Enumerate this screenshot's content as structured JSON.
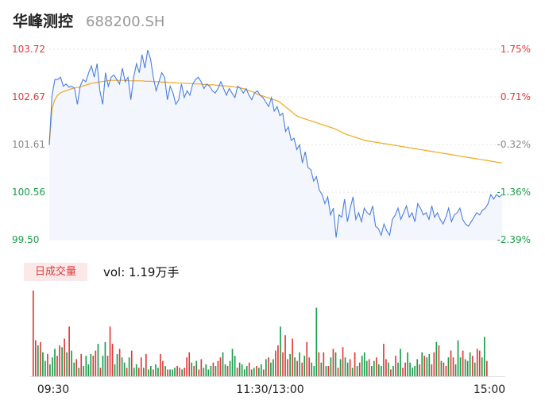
{
  "header": {
    "name": "华峰测控",
    "code": "688200.SH"
  },
  "volume": {
    "badge": "日成交量",
    "label": "vol: 1.19万手"
  },
  "colors": {
    "up": "#e03a3a",
    "down": "#1a9c4a",
    "price": "#4a7fe0",
    "avg": "#f0a820",
    "grid": "#e6e6e6"
  },
  "chart_data": [
    {
      "type": "line",
      "y_ticks_left": [
        "103.72",
        "102.67",
        "101.61",
        "100.56",
        "99.50"
      ],
      "y_ticks_right": [
        "1.75%",
        "0.71%",
        "-0.32%",
        "-1.36%",
        "-2.39%"
      ],
      "ylim": [
        99.5,
        103.72
      ],
      "x_ticks": [
        "09:30",
        "11:30/13:00",
        "15:00"
      ],
      "series": [
        {
          "key": "price",
          "values": [
            101.6,
            102.7,
            103.05,
            103.05,
            103.1,
            102.9,
            102.95,
            102.88,
            102.9,
            102.85,
            102.5,
            102.9,
            103.05,
            103.0,
            103.2,
            103.35,
            103.1,
            103.4,
            102.8,
            102.5,
            103.2,
            102.9,
            103.1,
            103.15,
            103.05,
            102.95,
            103.3,
            103.0,
            103.1,
            102.6,
            103.1,
            103.4,
            103.2,
            103.6,
            103.3,
            103.7,
            103.5,
            103.1,
            102.8,
            103.0,
            103.2,
            103.1,
            102.6,
            102.9,
            102.75,
            102.5,
            102.6,
            102.95,
            102.65,
            102.8,
            102.7,
            102.95,
            103.05,
            103.1,
            103.0,
            102.85,
            102.95,
            102.9,
            102.8,
            102.75,
            102.85,
            103.0,
            102.85,
            102.7,
            102.85,
            102.75,
            102.65,
            102.9,
            102.85,
            102.75,
            102.85,
            102.7,
            102.6,
            102.75,
            102.8,
            102.7,
            102.65,
            102.55,
            102.45,
            102.65,
            102.35,
            102.45,
            102.25,
            102.3,
            101.9,
            102.0,
            101.7,
            101.75,
            101.5,
            101.6,
            101.2,
            101.45,
            101.1,
            101.05,
            100.8,
            100.9,
            100.6,
            100.5,
            100.3,
            100.45,
            100.05,
            100.2,
            99.55,
            100.05,
            100.0,
            100.4,
            99.9,
            100.2,
            100.45,
            99.95,
            100.1,
            99.9,
            100.2,
            100.1,
            100.05,
            100.25,
            99.8,
            99.75,
            99.6,
            99.85,
            99.7,
            99.6,
            99.95,
            100.05,
            100.2,
            99.95,
            100.1,
            100.25,
            100.0,
            100.1,
            99.9,
            100.3,
            100.2,
            100.05,
            100.1,
            99.95,
            100.25,
            100.0,
            100.1,
            99.95,
            99.85,
            100.0,
            100.2,
            99.9,
            100.05,
            100.1,
            100.2,
            99.95,
            99.85,
            99.8,
            99.9,
            100.0,
            100.1,
            100.05,
            100.15,
            100.2,
            100.3,
            100.5,
            100.4,
            100.5,
            100.45,
            100.5
          ],
          "name": ""
        },
        {
          "key": "avg",
          "values": [
            101.6,
            102.4,
            102.6,
            102.7,
            102.75,
            102.78,
            102.8,
            102.82,
            102.84,
            102.86,
            102.87,
            102.88,
            102.9,
            102.92,
            102.94,
            102.96,
            102.97,
            102.98,
            102.99,
            103.0,
            103.01,
            103.02,
            103.03,
            103.03,
            103.03,
            103.03,
            103.03,
            103.03,
            103.03,
            103.02,
            103.02,
            103.02,
            103.02,
            103.02,
            103.02,
            103.01,
            103.01,
            103.01,
            103.0,
            103.0,
            103.0,
            102.99,
            102.99,
            102.99,
            102.98,
            102.98,
            102.98,
            102.97,
            102.97,
            102.97,
            102.96,
            102.96,
            102.96,
            102.95,
            102.95,
            102.95,
            102.94,
            102.94,
            102.93,
            102.93,
            102.93,
            102.92,
            102.92,
            102.91,
            102.91,
            102.9,
            102.9,
            102.89,
            102.88,
            102.87,
            102.86,
            102.84,
            102.82,
            102.8,
            102.78,
            102.75,
            102.72,
            102.7,
            102.68,
            102.66,
            102.64,
            102.62,
            102.6,
            102.58,
            102.55,
            102.5,
            102.45,
            102.4,
            102.35,
            102.3,
            102.25,
            102.22,
            102.2,
            102.18,
            102.16,
            102.14,
            102.12,
            102.1,
            102.08,
            102.06,
            102.04,
            102.02,
            102.0,
            101.98,
            101.96,
            101.93,
            101.9,
            101.87,
            101.84,
            101.82,
            101.8,
            101.78,
            101.76,
            101.74,
            101.72,
            101.7,
            101.69,
            101.68,
            101.67,
            101.66,
            101.65,
            101.64,
            101.63,
            101.62,
            101.61,
            101.6,
            101.59,
            101.58,
            101.57,
            101.56,
            101.55,
            101.54,
            101.53,
            101.52,
            101.51,
            101.5,
            101.49,
            101.48,
            101.47,
            101.46,
            101.45,
            101.44,
            101.43,
            101.42,
            101.41,
            101.4,
            101.39,
            101.38,
            101.37,
            101.36,
            101.35,
            101.34,
            101.33,
            101.32,
            101.31,
            101.3,
            101.29,
            101.28,
            101.27,
            101.26,
            101.25,
            101.24,
            101.23,
            101.22,
            101.21,
            101.2
          ],
          "name": ""
        }
      ]
    },
    {
      "type": "bar",
      "name": "volume",
      "values": [
        [
          100,
          1
        ],
        [
          42,
          1
        ],
        [
          36,
          0
        ],
        [
          40,
          1
        ],
        [
          28,
          0
        ],
        [
          18,
          0
        ],
        [
          26,
          1
        ],
        [
          14,
          0
        ],
        [
          22,
          0
        ],
        [
          32,
          0
        ],
        [
          24,
          1
        ],
        [
          36,
          1
        ],
        [
          34,
          0
        ],
        [
          44,
          1
        ],
        [
          28,
          0
        ],
        [
          58,
          1
        ],
        [
          30,
          0
        ],
        [
          16,
          0
        ],
        [
          20,
          1
        ],
        [
          10,
          0
        ],
        [
          26,
          1
        ],
        [
          12,
          0
        ],
        [
          24,
          0
        ],
        [
          14,
          0
        ],
        [
          26,
          0
        ],
        [
          24,
          1
        ],
        [
          30,
          1
        ],
        [
          38,
          0
        ],
        [
          10,
          1
        ],
        [
          24,
          0
        ],
        [
          40,
          0
        ],
        [
          24,
          1
        ],
        [
          58,
          1
        ],
        [
          38,
          1
        ],
        [
          14,
          0
        ],
        [
          26,
          0
        ],
        [
          32,
          1
        ],
        [
          22,
          0
        ],
        [
          16,
          0
        ],
        [
          10,
          1
        ],
        [
          22,
          0
        ],
        [
          30,
          1
        ],
        [
          10,
          0
        ],
        [
          14,
          0
        ],
        [
          10,
          1
        ],
        [
          22,
          1
        ],
        [
          10,
          0
        ],
        [
          26,
          1
        ],
        [
          8,
          0
        ],
        [
          12,
          0
        ],
        [
          8,
          1
        ],
        [
          14,
          0
        ],
        [
          10,
          0
        ],
        [
          26,
          1
        ],
        [
          18,
          1
        ],
        [
          12,
          0
        ],
        [
          8,
          1
        ],
        [
          8,
          0
        ],
        [
          8,
          0
        ],
        [
          10,
          0
        ],
        [
          12,
          1
        ],
        [
          10,
          1
        ],
        [
          8,
          0
        ],
        [
          10,
          1
        ],
        [
          22,
          1
        ],
        [
          28,
          1
        ],
        [
          16,
          0
        ],
        [
          12,
          1
        ],
        [
          18,
          0
        ],
        [
          8,
          1
        ],
        [
          20,
          1
        ],
        [
          10,
          0
        ],
        [
          14,
          0
        ],
        [
          8,
          0
        ],
        [
          12,
          0
        ],
        [
          16,
          1
        ],
        [
          12,
          0
        ],
        [
          18,
          1
        ],
        [
          22,
          1
        ],
        [
          28,
          0
        ],
        [
          14,
          0
        ],
        [
          12,
          1
        ],
        [
          18,
          0
        ],
        [
          32,
          0
        ],
        [
          24,
          0
        ],
        [
          10,
          1
        ],
        [
          16,
          0
        ],
        [
          14,
          0
        ],
        [
          8,
          0
        ],
        [
          12,
          0
        ],
        [
          16,
          1
        ],
        [
          8,
          0
        ],
        [
          10,
          0
        ],
        [
          12,
          1
        ],
        [
          10,
          0
        ],
        [
          14,
          0
        ],
        [
          8,
          1
        ],
        [
          20,
          0
        ],
        [
          22,
          1
        ],
        [
          16,
          0
        ],
        [
          20,
          0
        ],
        [
          30,
          1
        ],
        [
          36,
          1
        ],
        [
          58,
          0
        ],
        [
          28,
          1
        ],
        [
          48,
          1
        ],
        [
          20,
          1
        ],
        [
          26,
          0
        ],
        [
          44,
          1
        ],
        [
          22,
          0
        ],
        [
          18,
          1
        ],
        [
          28,
          0
        ],
        [
          16,
          1
        ],
        [
          24,
          0
        ],
        [
          40,
          1
        ],
        [
          22,
          1
        ],
        [
          16,
          0
        ],
        [
          12,
          0
        ],
        [
          80,
          0
        ],
        [
          28,
          1
        ],
        [
          16,
          0
        ],
        [
          28,
          1
        ],
        [
          12,
          0
        ],
        [
          12,
          1
        ],
        [
          22,
          0
        ],
        [
          32,
          1
        ],
        [
          28,
          0
        ],
        [
          10,
          1
        ],
        [
          20,
          0
        ],
        [
          34,
          1
        ],
        [
          22,
          0
        ],
        [
          16,
          0
        ],
        [
          20,
          1
        ],
        [
          10,
          0
        ],
        [
          28,
          1
        ],
        [
          12,
          0
        ],
        [
          16,
          1
        ],
        [
          24,
          0
        ],
        [
          28,
          0
        ],
        [
          18,
          0
        ],
        [
          20,
          1
        ],
        [
          12,
          0
        ],
        [
          18,
          0
        ],
        [
          22,
          1
        ],
        [
          14,
          0
        ],
        [
          12,
          0
        ],
        [
          38,
          1
        ],
        [
          20,
          1
        ],
        [
          16,
          0
        ],
        [
          8,
          1
        ],
        [
          12,
          0
        ],
        [
          24,
          1
        ],
        [
          16,
          0
        ],
        [
          32,
          0
        ],
        [
          10,
          1
        ],
        [
          16,
          1
        ],
        [
          28,
          0
        ],
        [
          16,
          0
        ],
        [
          10,
          0
        ],
        [
          12,
          0
        ],
        [
          20,
          0
        ],
        [
          14,
          1
        ],
        [
          28,
          0
        ],
        [
          24,
          1
        ],
        [
          22,
          0
        ],
        [
          26,
          0
        ],
        [
          14,
          1
        ],
        [
          28,
          1
        ],
        [
          40,
          0
        ],
        [
          36,
          1
        ],
        [
          18,
          0
        ],
        [
          16,
          1
        ],
        [
          12,
          1
        ],
        [
          22,
          0
        ],
        [
          30,
          1
        ],
        [
          22,
          1
        ],
        [
          14,
          0
        ],
        [
          42,
          0
        ],
        [
          22,
          0
        ],
        [
          30,
          1
        ],
        [
          20,
          0
        ],
        [
          18,
          0
        ],
        [
          28,
          0
        ],
        [
          24,
          1
        ],
        [
          16,
          0
        ],
        [
          32,
          1
        ],
        [
          30,
          1
        ],
        [
          22,
          0
        ],
        [
          46,
          0
        ],
        [
          18,
          1
        ]
      ],
      "encoding": "[volume, 1=up/0=down]"
    }
  ]
}
